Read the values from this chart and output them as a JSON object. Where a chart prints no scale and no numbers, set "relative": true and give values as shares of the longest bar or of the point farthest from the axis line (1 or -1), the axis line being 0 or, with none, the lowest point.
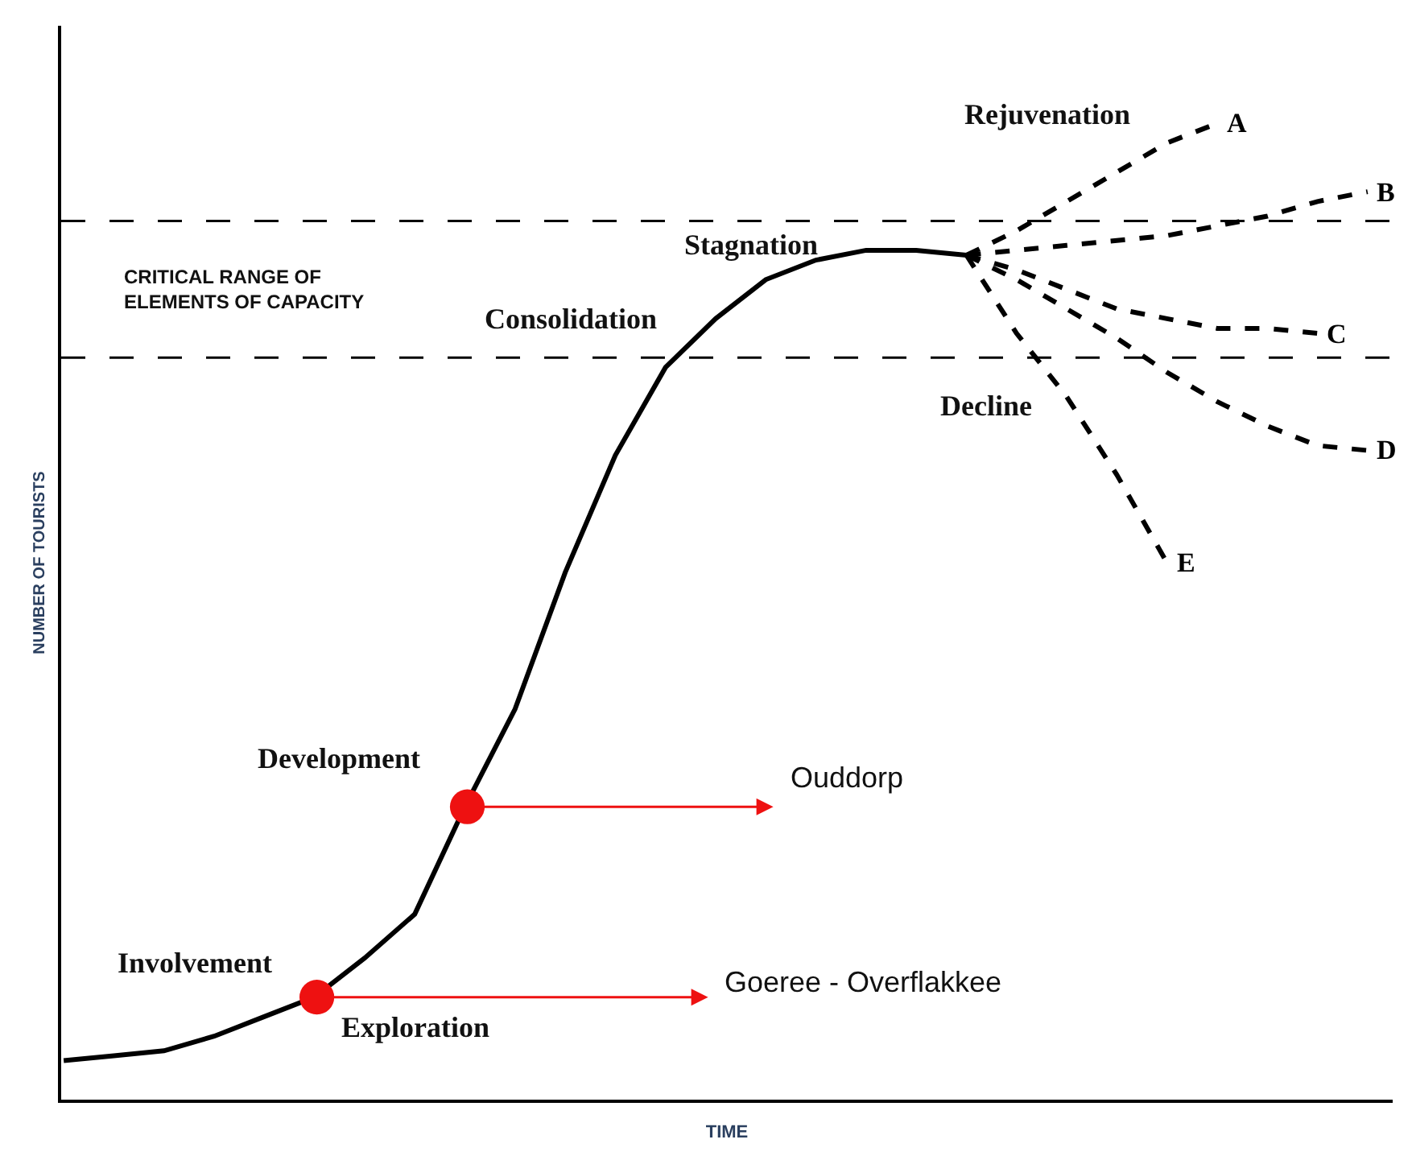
{
  "chart_data": {
    "type": "line",
    "relative": true,
    "xlabel": "TIME",
    "ylabel": "NUMBER OF TOURISTS",
    "categories": [
      null,
      null,
      null,
      null,
      null,
      null,
      null,
      null,
      null,
      null,
      null,
      null,
      null,
      null,
      null,
      null,
      null,
      null,
      null,
      null,
      null,
      null,
      null,
      null,
      null,
      null,
      null
    ],
    "series": [
      {
        "color": "#000000",
        "line_style": "solid",
        "values": [
          0.04,
          0.045,
          0.05,
          0.065,
          0.085,
          0.105,
          0.145,
          0.19,
          0.3,
          0.4,
          0.54,
          0.66,
          0.75,
          0.8,
          0.84,
          0.86,
          0.87,
          0.87,
          0.865,
          null,
          null,
          null,
          null,
          null,
          null,
          null,
          null
        ]
      },
      {
        "name": "A",
        "color": "#000000",
        "line_style": "dashed",
        "values": [
          null,
          null,
          null,
          null,
          null,
          null,
          null,
          null,
          null,
          null,
          null,
          null,
          null,
          null,
          null,
          null,
          null,
          null,
          0.865,
          0.89,
          0.92,
          0.95,
          0.98,
          1.0,
          null,
          null,
          null
        ]
      },
      {
        "name": "B",
        "color": "#000000",
        "line_style": "dashed",
        "values": [
          null,
          null,
          null,
          null,
          null,
          null,
          null,
          null,
          null,
          null,
          null,
          null,
          null,
          null,
          null,
          null,
          null,
          null,
          0.865,
          0.87,
          0.875,
          0.88,
          0.885,
          0.895,
          0.905,
          0.92,
          0.93
        ]
      },
      {
        "name": "C",
        "color": "#000000",
        "line_style": "dashed",
        "values": [
          null,
          null,
          null,
          null,
          null,
          null,
          null,
          null,
          null,
          null,
          null,
          null,
          null,
          null,
          null,
          null,
          null,
          null,
          0.865,
          0.85,
          0.83,
          0.81,
          0.8,
          0.79,
          0.79,
          0.785,
          null
        ]
      },
      {
        "name": "D",
        "color": "#000000",
        "line_style": "dashed",
        "values": [
          null,
          null,
          null,
          null,
          null,
          null,
          null,
          null,
          null,
          null,
          null,
          null,
          null,
          null,
          null,
          null,
          null,
          null,
          0.865,
          0.84,
          0.81,
          0.78,
          0.745,
          0.715,
          0.69,
          0.67,
          0.665
        ]
      },
      {
        "name": "E",
        "color": "#000000",
        "line_style": "dashed",
        "values": [
          null,
          null,
          null,
          null,
          null,
          null,
          null,
          null,
          null,
          null,
          null,
          null,
          null,
          null,
          null,
          null,
          null,
          null,
          0.865,
          0.785,
          0.72,
          0.64,
          0.55,
          null,
          null,
          null,
          null
        ]
      }
    ],
    "ref_lines": [
      {
        "axis": "y",
        "value": 0.9,
        "color": "#000000",
        "line_style": "dashed"
      },
      {
        "axis": "y",
        "value": 0.76,
        "color": "#000000",
        "line_style": "dashed"
      }
    ],
    "annotations": [
      "Rejuvenation",
      "Stagnation",
      "Consolidation",
      "Decline",
      "Development",
      "Involvement",
      "Exploration",
      "CRITICAL RANGE OF\nELEMENTS OF CAPACITY",
      "Ouddorp",
      "Goeree - Overflakkee"
    ],
    "legend": false
  }
}
